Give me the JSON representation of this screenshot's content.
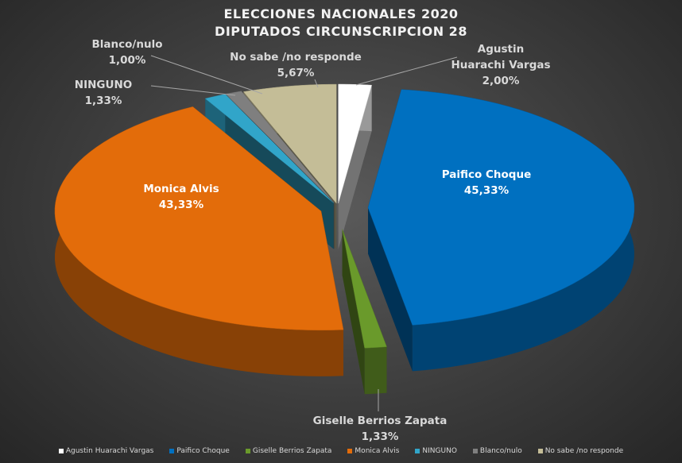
{
  "chart_data": {
    "type": "pie",
    "style": "3d-exploded",
    "title": [
      "ELECCIONES NACIONALES 2020",
      "DIPUTADOS CIRCUNSCRIPCION 28"
    ],
    "legend_position": "bottom",
    "slices": [
      {
        "name": "Agustin Huarachi Vargas",
        "value": 2.0,
        "label": "2,00%",
        "color": "#ffffff"
      },
      {
        "name": "Paifico Choque",
        "value": 45.33,
        "label": "45,33%",
        "color": "#0070c0"
      },
      {
        "name": "Giselle Berrios Zapata",
        "value": 1.33,
        "label": "1,33%",
        "color": "#6a9a2b"
      },
      {
        "name": "Monica Alvis",
        "value": 43.33,
        "label": "43,33%",
        "color": "#e36c0a"
      },
      {
        "name": "NINGUNO",
        "value": 1.33,
        "label": "1,33%",
        "color": "#31a5c9"
      },
      {
        "name": "Blanco/nulo",
        "value": 1.0,
        "label": "1,00%",
        "color": "#7f7f7f"
      },
      {
        "name": "No sabe /no responde",
        "value": 5.67,
        "label": "5,67%",
        "color": "#c4bd97"
      }
    ]
  }
}
